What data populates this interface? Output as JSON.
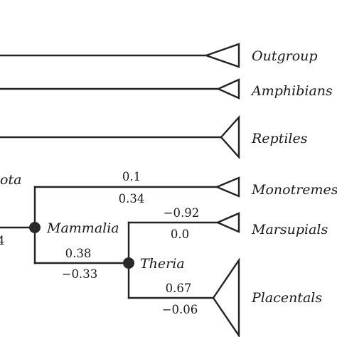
{
  "taxa": {
    "outgroup": "Outgroup",
    "amphibians": "Amphibians",
    "reptiles": "Reptiles",
    "monotremes": "Monotremes",
    "marsupials": "Marsupials",
    "placentals": "Placentals"
  },
  "nodes": {
    "amniota_partial": "ota",
    "mammalia": "Mammalia",
    "theria": "Theria"
  },
  "branch_values": {
    "monotremes_top": "0.1",
    "monotremes_bottom": "0.34",
    "marsupials_top": "−0.92",
    "marsupials_bottom": "0.0",
    "theria_top": "0.38",
    "theria_bottom": "−0.33",
    "placentals_top": "0.67",
    "placentals_bottom": "−0.06",
    "left_partial": "4"
  },
  "colors": {
    "line": "#222222",
    "node": "#2a2a2a",
    "background": "#ffffff"
  }
}
